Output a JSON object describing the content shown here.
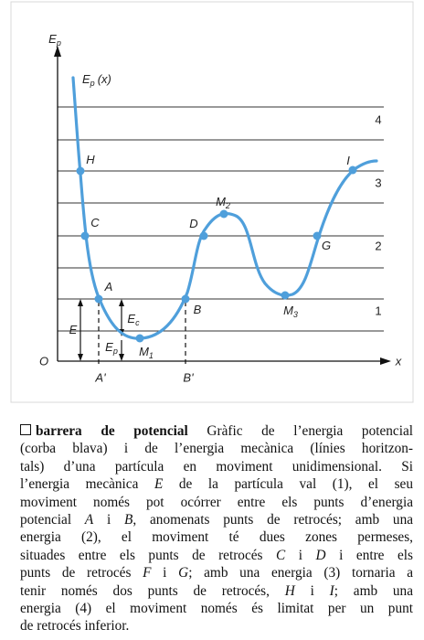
{
  "figure": {
    "y_axis_label": {
      "text": "E",
      "sub": "p"
    },
    "x_axis_label": "x",
    "origin_label": "O",
    "curve_label": {
      "text": "E",
      "sub": "p",
      "suffix": "(x)"
    },
    "level_labels": [
      "4",
      "3",
      "2",
      "1"
    ],
    "points": [
      {
        "text": "H"
      },
      {
        "text": "C"
      },
      {
        "text": "A"
      },
      {
        "text": "M",
        "sub": "1"
      },
      {
        "text": "B"
      },
      {
        "text": "D"
      },
      {
        "text": "M",
        "sub": "2"
      },
      {
        "text": "M",
        "sub": "3"
      },
      {
        "text": "G"
      },
      {
        "text": "I"
      }
    ],
    "turning_labels": [
      "A'",
      "B'"
    ],
    "energy_labels": [
      {
        "text": "E"
      },
      {
        "text": "E",
        "sub": "c"
      },
      {
        "text": "E",
        "sub": "p"
      }
    ]
  },
  "definition": {
    "term": "barrera de potencial",
    "lines": [
      [
        "Gràfic de l’energia potencial"
      ],
      [
        "(corba blava) i de l’energia mecànica (línies horitzon-"
      ],
      [
        "tals) d’una partícula en moviment unidimensional. Si"
      ],
      [
        "l’energia mecànica ",
        {
          "text": "E",
          "italic": true
        },
        " de la partícula val (1), el seu"
      ],
      [
        "moviment només pot ocórrer entre els punts d’energia"
      ],
      [
        "potencial ",
        {
          "text": "A",
          "italic": true
        },
        " i ",
        {
          "text": "B",
          "italic": true
        },
        ", anomenats punts de retrocés; amb una"
      ],
      [
        "energia (2), el moviment té dues zones permeses,"
      ],
      [
        "situades entre els punts de retrocés ",
        {
          "text": "C",
          "italic": true
        },
        " i ",
        {
          "text": "D",
          "italic": true
        },
        " i entre els"
      ],
      [
        "punts de retrocés ",
        {
          "text": "F",
          "italic": true
        },
        " i ",
        {
          "text": "G",
          "italic": true
        },
        "; amb una energia (3) tornaria a"
      ],
      [
        "tenir només dos punts de retrocés, ",
        {
          "text": "H",
          "italic": true
        },
        " i ",
        {
          "text": "I",
          "italic": true
        },
        "; amb una"
      ],
      [
        "energia (4) el moviment només és limitat per un punt"
      ],
      [
        "de retrocés inferior."
      ]
    ]
  }
}
